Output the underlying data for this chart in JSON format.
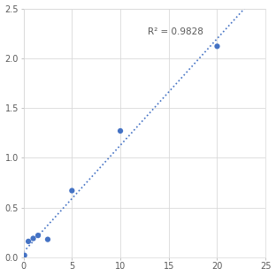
{
  "x_data": [
    0.0,
    0.1,
    0.5,
    1.0,
    1.5,
    2.5,
    5.0,
    10.0,
    20.0
  ],
  "y_data": [
    0.01,
    0.02,
    0.16,
    0.19,
    0.22,
    0.18,
    0.67,
    1.27,
    2.12
  ],
  "trendline_x": [
    0.0,
    25.0
  ],
  "r_squared": "R² = 0.9828",
  "r_squared_x": 12.8,
  "r_squared_y": 2.22,
  "xlim": [
    0,
    25
  ],
  "ylim": [
    0,
    2.5
  ],
  "xticks": [
    0,
    5,
    10,
    15,
    20,
    25
  ],
  "yticks": [
    0,
    0.5,
    1.0,
    1.5,
    2.0,
    2.5
  ],
  "marker_color": "#4472C4",
  "line_color": "#4472C4",
  "background_color": "#ffffff",
  "grid_color": "#d9d9d9",
  "marker_size": 4.5,
  "tick_fontsize": 7,
  "annotation_fontsize": 7.5
}
